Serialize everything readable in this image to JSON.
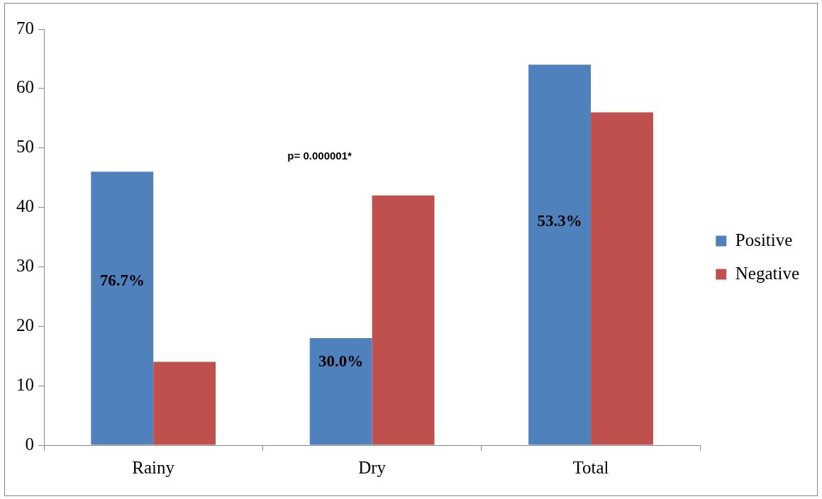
{
  "chart_data": {
    "type": "bar",
    "categories": [
      "Rainy",
      "Dry",
      "Total"
    ],
    "series": [
      {
        "name": "Positive",
        "color": "#4f81bd",
        "values": [
          46,
          18,
          64
        ]
      },
      {
        "name": "Negative",
        "color": "#c0504d",
        "values": [
          14,
          42,
          56
        ]
      }
    ],
    "ylim": [
      0,
      70
    ],
    "yticks": [
      0,
      10,
      20,
      30,
      40,
      50,
      60,
      70
    ],
    "grid": false,
    "legend": "right",
    "annotations": [
      "p= 0.000001*",
      {
        "text": "76.7%",
        "x": "Rainy",
        "y": 27.5
      },
      {
        "text": "30.0%",
        "x": "Dry",
        "y": 14
      },
      {
        "text": "53.3%",
        "x": "Total",
        "y": 37.5
      }
    ]
  }
}
